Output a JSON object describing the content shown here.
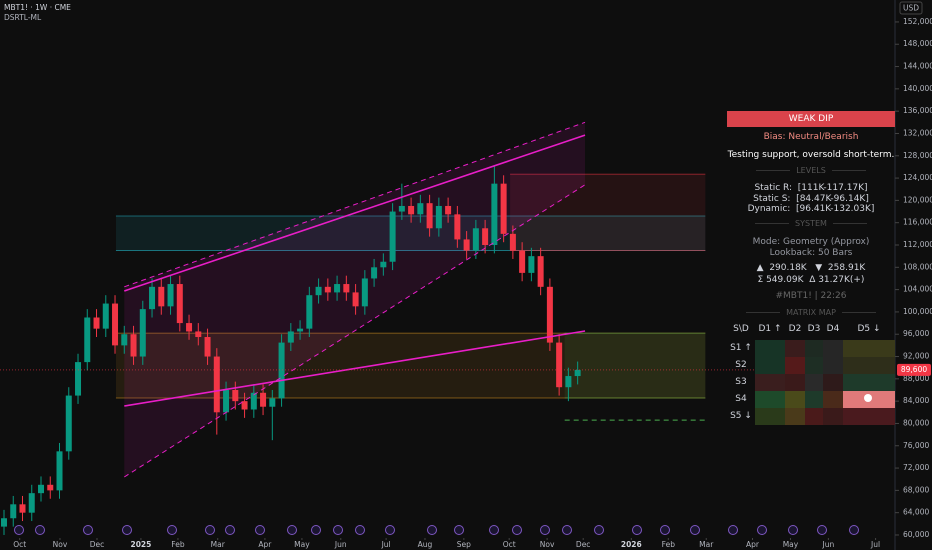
{
  "chart_data": {
    "type": "candlestick",
    "symbol": "MBT1! · 1W · CME",
    "indicator": "DSRTL-ML",
    "currency": "USD",
    "open": [
      61500,
      63000,
      65500,
      64000,
      67500,
      69000,
      68000,
      75000,
      85000,
      91000,
      99000,
      97000,
      101500,
      94000,
      96000,
      92000,
      100500,
      104500,
      101000,
      105000,
      98000,
      96500,
      95500,
      92000,
      82000,
      86000,
      84000,
      82500,
      85500,
      83000,
      84500,
      94500,
      96500,
      97000,
      103000,
      104500,
      103500,
      105000,
      103500,
      101000,
      106000,
      108000,
      109000,
      118000,
      119000,
      117500,
      119500,
      115000,
      119000,
      117500,
      113000,
      111000,
      115000,
      112000,
      123000,
      114000,
      111000,
      107000,
      110000,
      104500,
      94500,
      86500,
      88500
    ],
    "high": [
      64500,
      67000,
      67000,
      69000,
      70500,
      70500,
      76500,
      86500,
      92500,
      100500,
      100500,
      103000,
      103000,
      97500,
      97500,
      102000,
      106000,
      106000,
      106500,
      106500,
      99500,
      98000,
      97000,
      93500,
      87500,
      87500,
      85500,
      87000,
      87000,
      86000,
      96000,
      98000,
      98500,
      104500,
      106000,
      106000,
      106500,
      106500,
      105000,
      107500,
      109500,
      110500,
      119500,
      123000,
      120500,
      121000,
      121000,
      120500,
      120500,
      119000,
      114500,
      116500,
      116500,
      126200,
      124500,
      115500,
      112500,
      111500,
      111500,
      106000,
      96000,
      90000,
      91100
    ],
    "low": [
      60000,
      61500,
      62500,
      62500,
      66000,
      66500,
      66500,
      73500,
      83500,
      89500,
      95500,
      95500,
      92500,
      92500,
      90500,
      90500,
      99000,
      99500,
      99500,
      96500,
      95000,
      94000,
      90500,
      78000,
      80500,
      82500,
      81000,
      81000,
      81500,
      77000,
      83000,
      93000,
      95000,
      95500,
      101500,
      102000,
      102000,
      102000,
      99500,
      99500,
      104500,
      106500,
      107500,
      116500,
      116000,
      116000,
      113500,
      113500,
      116000,
      111500,
      109500,
      109500,
      110500,
      110500,
      112500,
      109500,
      105500,
      105500,
      103000,
      93000,
      85000,
      84000,
      87000
    ],
    "close": [
      63000,
      65500,
      64000,
      67500,
      69000,
      68000,
      75000,
      85000,
      91000,
      99000,
      97000,
      101500,
      94000,
      96000,
      92000,
      100500,
      104500,
      101000,
      105000,
      98000,
      96500,
      95500,
      92000,
      82000,
      86000,
      84000,
      82500,
      85500,
      83000,
      84500,
      94500,
      96500,
      97000,
      103000,
      104500,
      103500,
      105000,
      103500,
      101000,
      106000,
      108000,
      109000,
      118000,
      119000,
      117500,
      119500,
      115000,
      119000,
      117500,
      113000,
      111000,
      115000,
      112000,
      123000,
      114000,
      111000,
      107000,
      110000,
      104500,
      94500,
      86500,
      88500,
      89600
    ],
    "up_color": "#089981",
    "down_color": "#f23645",
    "xlim": [
      -0.432,
      96.3
    ],
    "xticks": [
      {
        "value": 1.7,
        "label": "Oct"
      },
      {
        "value": 6.05,
        "label": "Nov"
      },
      {
        "value": 10.05,
        "label": "Dec"
      },
      {
        "value": 14.8,
        "label": "2025"
      },
      {
        "value": 18.8,
        "label": "Feb"
      },
      {
        "value": 23.1,
        "label": "Mar"
      },
      {
        "value": 28.2,
        "label": "Apr"
      },
      {
        "value": 32.2,
        "label": "May"
      },
      {
        "value": 36.4,
        "label": "Jun"
      },
      {
        "value": 41.3,
        "label": "Jul"
      },
      {
        "value": 45.5,
        "label": "Aug"
      },
      {
        "value": 49.7,
        "label": "Sep"
      },
      {
        "value": 54.6,
        "label": "Oct"
      },
      {
        "value": 58.7,
        "label": "Nov"
      },
      {
        "value": 62.6,
        "label": "Dec"
      },
      {
        "value": 67.8,
        "label": "2026"
      },
      {
        "value": 71.8,
        "label": "Feb"
      },
      {
        "value": 75.9,
        "label": "Mar"
      },
      {
        "value": 80.9,
        "label": "Apr"
      },
      {
        "value": 85,
        "label": "May"
      },
      {
        "value": 89.1,
        "label": "Jun"
      },
      {
        "value": 94.2,
        "label": "Jul"
      }
    ],
    "ylim": [
      59100,
      154500
    ],
    "yticks": [
      {
        "value": 60000,
        "label": "60,000"
      },
      {
        "value": 64000,
        "label": "64,000"
      },
      {
        "value": 68000,
        "label": "68,000"
      },
      {
        "value": 72000,
        "label": "72,000"
      },
      {
        "value": 76000,
        "label": "76,000"
      },
      {
        "value": 80000,
        "label": "80,000"
      },
      {
        "value": 84000,
        "label": "84,000"
      },
      {
        "value": 88000,
        "label": "88,000"
      },
      {
        "value": 92000,
        "label": "92,000"
      },
      {
        "value": 96000,
        "label": "96,000"
      },
      {
        "value": 100000,
        "label": "100,000"
      },
      {
        "value": 104000,
        "label": "104,000"
      },
      {
        "value": 108000,
        "label": "108,000"
      },
      {
        "value": 112000,
        "label": "112,000"
      },
      {
        "value": 116000,
        "label": "116,000"
      },
      {
        "value": 120000,
        "label": "120,000"
      },
      {
        "value": 124000,
        "label": "124,000"
      },
      {
        "value": 128000,
        "label": "128,000"
      },
      {
        "value": 132000,
        "label": "132,000"
      },
      {
        "value": 136000,
        "label": "136,000"
      },
      {
        "value": 140000,
        "label": "140,000"
      },
      {
        "value": 144000,
        "label": "144,000"
      },
      {
        "value": 148000,
        "label": "148,000"
      },
      {
        "value": 152000,
        "label": "152,000"
      }
    ],
    "last_price": {
      "value": 89600,
      "label": "89,600"
    },
    "zones": [
      {
        "from": 111000,
        "to": 117200,
        "x": [
          12.1,
          75.8
        ],
        "color": "#26c6da"
      },
      {
        "from": 84560,
        "to": 96200,
        "x": [
          12.1,
          75.8
        ],
        "color": "#f5a623"
      },
      {
        "from": 111000,
        "to": 124700,
        "x": [
          54.7,
          75.8
        ],
        "color": "#f23645"
      },
      {
        "from": 84560,
        "to": 96200,
        "x": [
          60.6,
          75.8
        ],
        "color": "#4caf50"
      }
    ],
    "lines": [
      {
        "x": [
          13,
          62.8
        ],
        "y": [
          103750,
          131700
        ],
        "color": "#e91ec8",
        "dash": false
      },
      {
        "x": [
          13,
          62.8
        ],
        "y": [
          83130,
          96580
        ],
        "color": "#e91ec8",
        "dash": false
      },
      {
        "x": [
          13,
          62.8
        ],
        "y": [
          104500,
          134000
        ],
        "color": "#e91ec8",
        "dash": true
      },
      {
        "x": [
          13,
          62.8
        ],
        "y": [
          70400,
          122800
        ],
        "color": "#e91ec8",
        "dash": true
      },
      {
        "x": [
          60.6,
          75.8
        ],
        "y": [
          80600,
          80600
        ],
        "color": "#4caf50",
        "dash": true
      }
    ]
  },
  "panel": {
    "status": "WEAK DIP",
    "bias": "Bias: Neutral/Bearish",
    "note": "Testing support, oversold short-term.",
    "levels_title": "LEVELS",
    "static_r": "Static R:  [111K-117.17K]",
    "static_s": "Static S:  [84.47K-96.14K]",
    "dynamic": "Dynamic:  [96.41K-132.03K]",
    "system_title": "SYSTEM",
    "mode": "Mode: Geometry (Approx)",
    "lookback": "Lookback: 50 Bars",
    "flow1": "▲  290.18K   ▼  258.91K",
    "flow2": "Σ 549.09K  Δ 31.27K(+)",
    "stamp": "#MBT1! | 22:26",
    "matrix_title": "MATRIX MAP",
    "matrix_header": [
      "S\\D",
      "D1 ↑",
      "D2",
      "D3",
      "D4",
      "D5 ↓"
    ],
    "matrix_rows": [
      "S1 ↑",
      "S2",
      "S3",
      "S4",
      "S5 ↓"
    ]
  }
}
